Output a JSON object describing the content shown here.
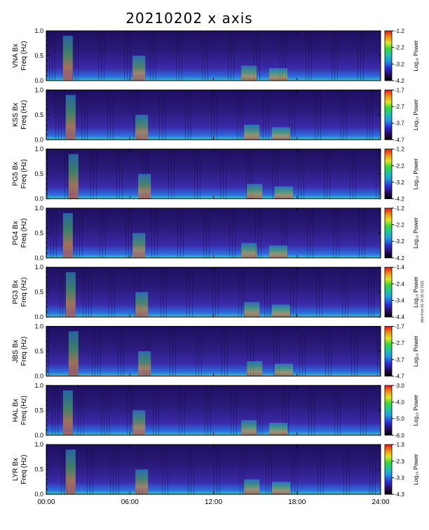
{
  "title": "20210202 x axis",
  "side_note": "Mon Feb 15 14:15:13 2021",
  "chart_data": {
    "type": "heatmap",
    "title": "20210202 x axis",
    "xlabel": "",
    "x_tick_labels": [
      "00:00",
      "06:00",
      "12:00",
      "18:00",
      "24:00"
    ],
    "x_ticks_hours": [
      0,
      6,
      12,
      18,
      24
    ],
    "xlim_hours": [
      0,
      24
    ],
    "ylim_hz": [
      0,
      1.0
    ],
    "y_tick_labels": [
      "0.0",
      "0.5",
      "1.0"
    ],
    "y_ticks": [
      0,
      0.5,
      1.0
    ],
    "colorbar_label": "Log₁₀ Power",
    "colormap": "rainbow",
    "panels": [
      {
        "station": "VNA Bx",
        "ylabel_line2": "Freq (Hz)",
        "cbar_ticks": [
          "-1.2",
          "-2.2",
          "-3.2",
          "-4.2"
        ],
        "cbar_range": [
          -4.2,
          -1.2
        ]
      },
      {
        "station": "KSS Bx",
        "ylabel_line2": "Freq (Hz)",
        "cbar_ticks": [
          "-1.7",
          "-2.7",
          "-3.7",
          "-4.7"
        ],
        "cbar_range": [
          -4.7,
          -1.7
        ]
      },
      {
        "station": "PG5 Bx",
        "ylabel_line2": "Freq (Hz)",
        "cbar_ticks": [
          "-1.2",
          "-2.2",
          "-3.2",
          "-4.2"
        ],
        "cbar_range": [
          -4.2,
          -1.2
        ]
      },
      {
        "station": "PG4 Bx",
        "ylabel_line2": "Freq (Hz)",
        "cbar_ticks": [
          "-1.2",
          "-2.2",
          "-3.2",
          "-4.2"
        ],
        "cbar_range": [
          -4.2,
          -1.2
        ]
      },
      {
        "station": "PG3 Bx",
        "ylabel_line2": "Freq (Hz)",
        "cbar_ticks": [
          "-1.4",
          "-2.4",
          "-3.4",
          "-4.4"
        ],
        "cbar_range": [
          -4.4,
          -1.4
        ]
      },
      {
        "station": "JBS Bx",
        "ylabel_line2": "Freq (Hz)",
        "cbar_ticks": [
          "-1.7",
          "-2.7",
          "-3.7",
          "-4.7"
        ],
        "cbar_range": [
          -4.7,
          -1.7
        ]
      },
      {
        "station": "HAL Bx",
        "ylabel_line2": "Freq (Hz)",
        "cbar_ticks": [
          "-3.0",
          "-4.0",
          "-5.0",
          "-6.0"
        ],
        "cbar_range": [
          -6.0,
          -3.0
        ]
      },
      {
        "station": "LYR Bx",
        "ylabel_line2": "Freq (Hz)",
        "cbar_ticks": [
          "-1.3",
          "-2.3",
          "-3.3",
          "-4.3"
        ],
        "cbar_range": [
          -4.3,
          -1.3
        ]
      }
    ]
  }
}
